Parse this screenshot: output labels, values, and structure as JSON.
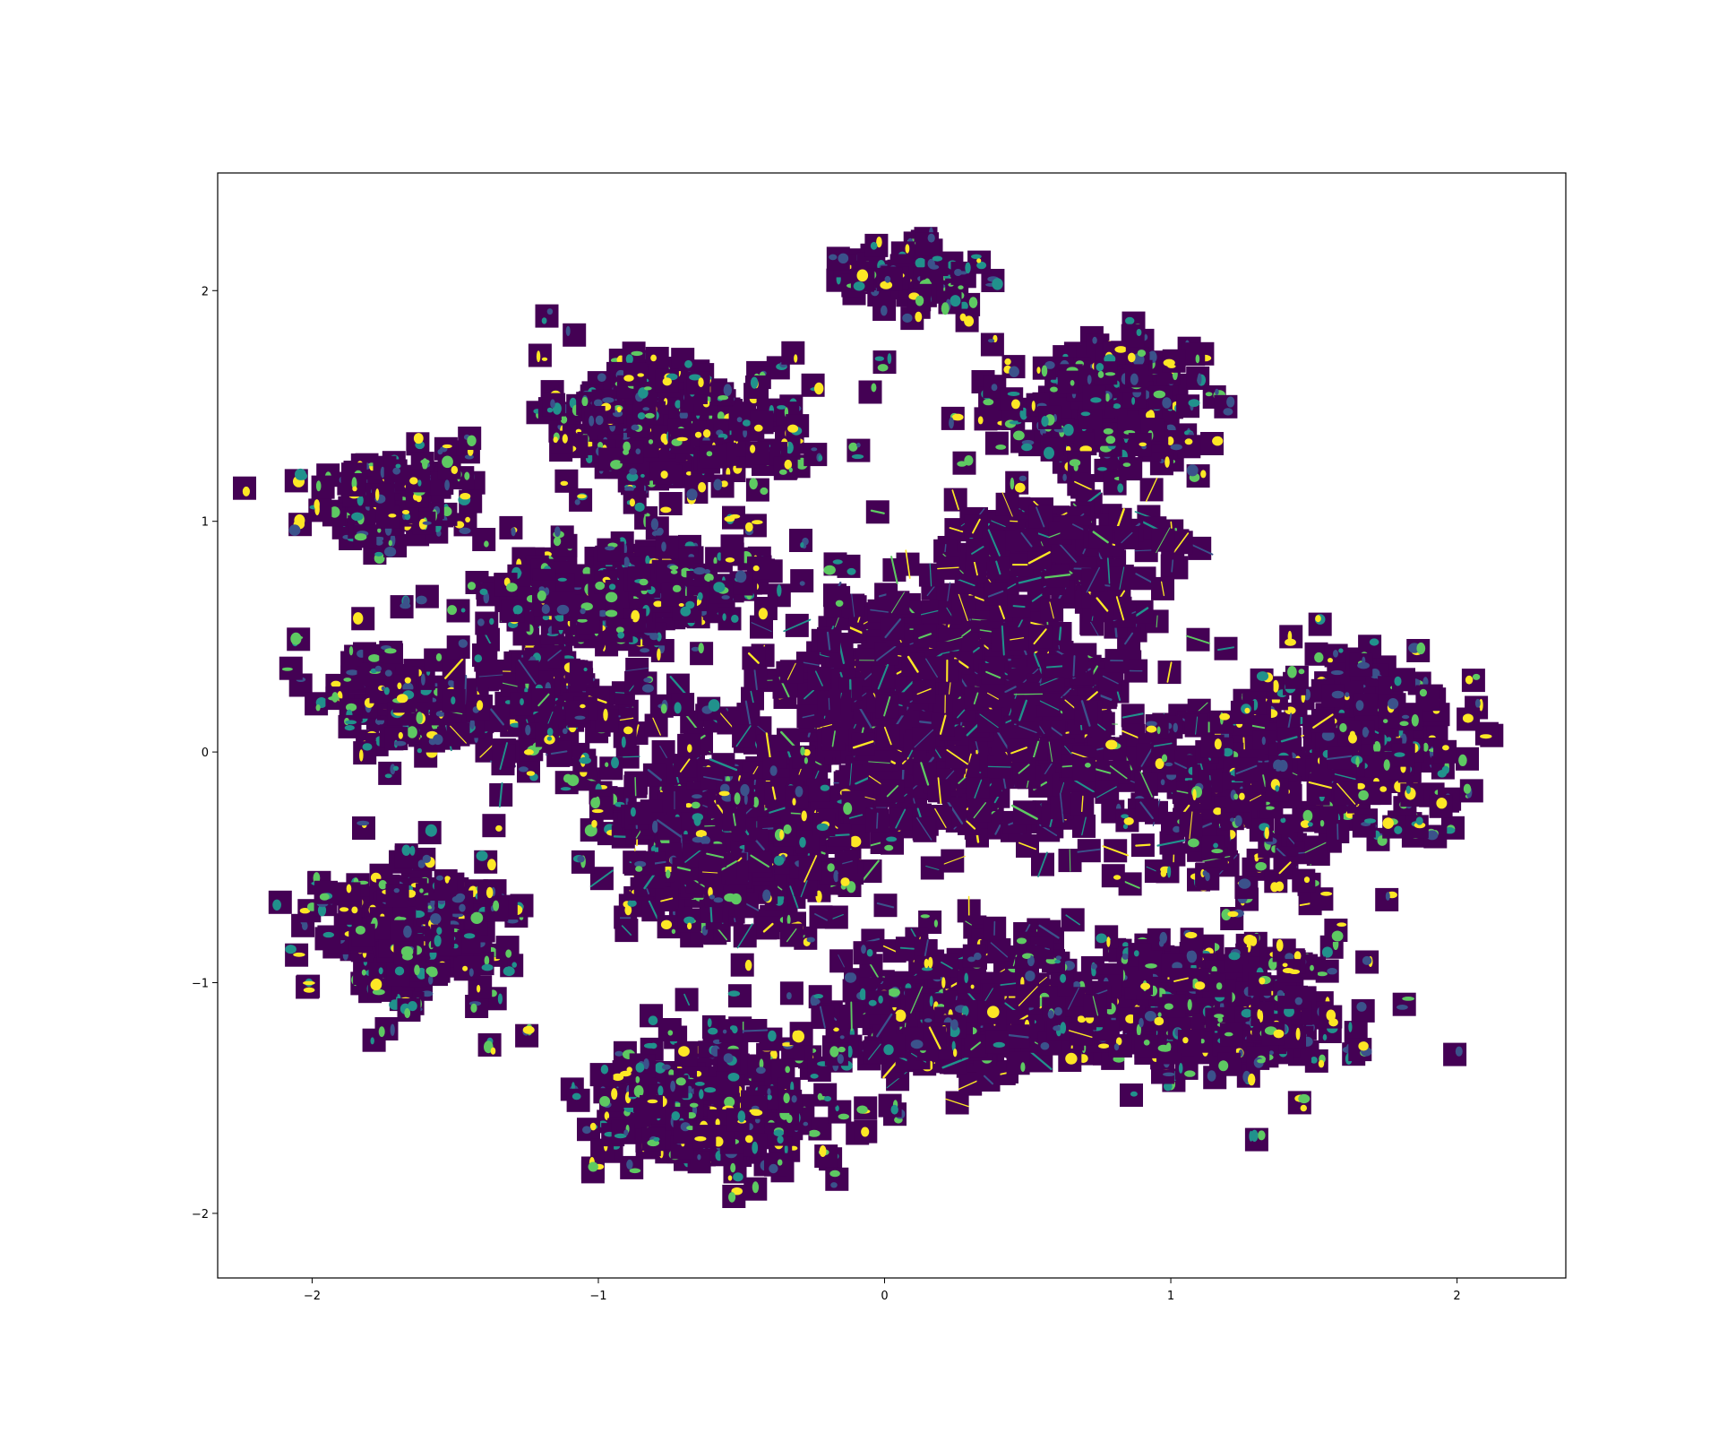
{
  "chart_data": {
    "type": "scatter",
    "title": "",
    "xlabel": "",
    "ylabel": "",
    "xlim": [
      -2.33,
      2.38
    ],
    "ylim": [
      -2.28,
      2.51
    ],
    "xticks": [
      -2,
      -1,
      0,
      1,
      2
    ],
    "xtick_labels": [
      "−2",
      "−1",
      "0",
      "1",
      "2"
    ],
    "yticks": [
      -2,
      -1,
      0,
      1,
      2
    ],
    "ytick_labels": [
      "−2",
      "−1",
      "0",
      "1",
      "2"
    ],
    "grid": false,
    "legend": "none",
    "marker": "image-thumbnail",
    "colormap": [
      "#440154",
      "#3b528b",
      "#21918c",
      "#5ec962",
      "#fde725"
    ],
    "background_color": "#440154",
    "clusters": [
      {
        "x": 0.25,
        "y": 0.2,
        "sx": 0.5,
        "sy": 0.45,
        "n": 900,
        "style": "streak"
      },
      {
        "x": -0.55,
        "y": -0.4,
        "sx": 0.35,
        "sy": 0.3,
        "n": 450,
        "style": "mixed"
      },
      {
        "x": -0.75,
        "y": 1.4,
        "sx": 0.35,
        "sy": 0.22,
        "n": 280,
        "style": "blob"
      },
      {
        "x": -1.7,
        "y": 1.1,
        "sx": 0.25,
        "sy": 0.15,
        "n": 100,
        "style": "blob"
      },
      {
        "x": -1.75,
        "y": 0.25,
        "sx": 0.18,
        "sy": 0.2,
        "n": 70,
        "style": "blob"
      },
      {
        "x": -1.65,
        "y": -0.75,
        "sx": 0.3,
        "sy": 0.28,
        "n": 180,
        "style": "blob"
      },
      {
        "x": -1.2,
        "y": 0.2,
        "sx": 0.35,
        "sy": 0.25,
        "n": 140,
        "style": "mixed"
      },
      {
        "x": 0.1,
        "y": 2.05,
        "sx": 0.22,
        "sy": 0.12,
        "n": 70,
        "style": "blob"
      },
      {
        "x": 0.75,
        "y": 1.5,
        "sx": 0.3,
        "sy": 0.22,
        "n": 180,
        "style": "blob"
      },
      {
        "x": 1.7,
        "y": 0.05,
        "sx": 0.25,
        "sy": 0.35,
        "n": 200,
        "style": "blob"
      },
      {
        "x": 1.2,
        "y": -0.2,
        "sx": 0.3,
        "sy": 0.35,
        "n": 200,
        "style": "mixed"
      },
      {
        "x": 1.1,
        "y": -1.1,
        "sx": 0.45,
        "sy": 0.22,
        "n": 300,
        "style": "blob"
      },
      {
        "x": -0.6,
        "y": -1.55,
        "sx": 0.35,
        "sy": 0.25,
        "n": 260,
        "style": "blob"
      },
      {
        "x": 0.25,
        "y": -1.1,
        "sx": 0.4,
        "sy": 0.25,
        "n": 280,
        "style": "mixed"
      },
      {
        "x": -0.9,
        "y": 0.7,
        "sx": 0.45,
        "sy": 0.2,
        "n": 220,
        "style": "blob"
      },
      {
        "x": 0.6,
        "y": 0.85,
        "sx": 0.35,
        "sy": 0.2,
        "n": 180,
        "style": "streak"
      }
    ],
    "isolated_points": [
      [
        -1.18,
        1.89
      ],
      [
        -1.38,
        -1.27
      ],
      [
        -1.25,
        -1.23
      ],
      [
        -1.74,
        -1.2
      ],
      [
        -1.82,
        -0.33
      ],
      [
        -1.45,
        1.36
      ],
      [
        -0.32,
        1.73
      ],
      [
        -0.25,
        1.59
      ],
      [
        -0.05,
        1.56
      ],
      [
        0.0,
        1.69
      ],
      [
        1.42,
        0.5
      ],
      [
        1.45,
        -1.52
      ],
      [
        -1.07,
        -1.51
      ],
      [
        1.3,
        -1.68
      ]
    ]
  }
}
